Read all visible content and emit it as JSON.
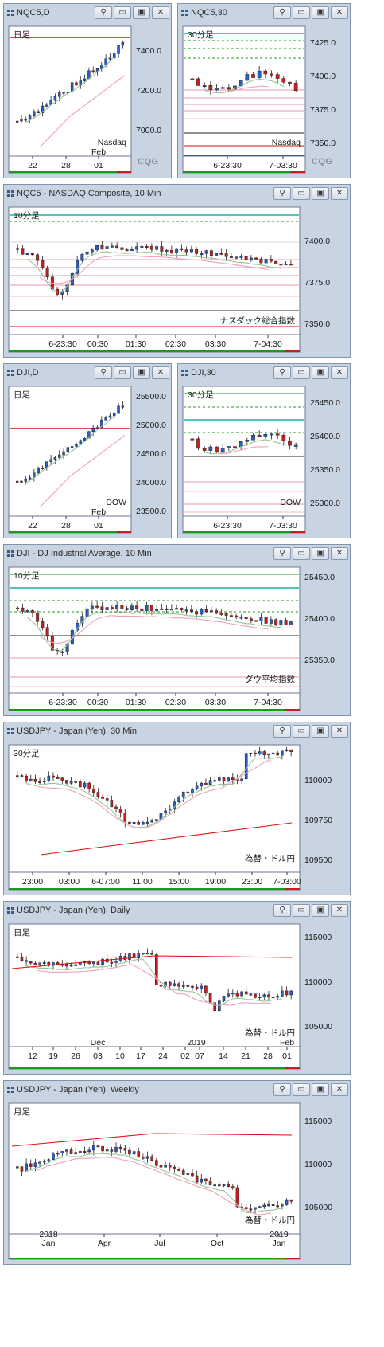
{
  "windows": [
    {
      "id": "w1",
      "title": "NQC5,D",
      "corner": "日足",
      "corner_color": "#2456c0",
      "label": "Nasdaq",
      "label_color": "#2456c0",
      "yticks": [
        "7400.0",
        "7200.0",
        "7000.0"
      ],
      "xticks": [
        "22",
        "28",
        "01"
      ],
      "xsub": [
        "Feb"
      ],
      "brand": "CQG"
    },
    {
      "id": "w2",
      "title": "NQC5,30",
      "corner": "30分足",
      "corner_color": "#2456c0",
      "label": "Nasdaq",
      "label_color": "#2456c0",
      "yticks": [
        "7425.0",
        "7400.0",
        "7375.0",
        "7350.0"
      ],
      "xticks": [
        "6-23:30",
        "7-03:30"
      ],
      "xsub": [],
      "brand": "CQG"
    },
    {
      "id": "w3",
      "title": "NQC5 - NASDAQ Composite, 10 Min",
      "corner": "10分足",
      "corner_color": "#2456c0",
      "label": "ナスダック総合指数",
      "label_color": "#2456c0",
      "yticks": [
        "7400.0",
        "7375.0",
        "7350.0"
      ],
      "xticks": [
        "6-23:30",
        "00:30",
        "01:30",
        "02:30",
        "03:30",
        "7-04:30"
      ],
      "xsub": [],
      "brand": ""
    },
    {
      "id": "w4",
      "title": "DJI,D",
      "corner": "日足",
      "corner_color": "#d01818",
      "label": "DOW",
      "label_color": "#d01818",
      "yticks": [
        "25500.0",
        "25000.0",
        "24500.0",
        "24000.0",
        "23500.0"
      ],
      "xticks": [
        "22",
        "28",
        "01"
      ],
      "xsub": [
        "Feb"
      ],
      "brand": ""
    },
    {
      "id": "w5",
      "title": "DJI,30",
      "corner": "30分足",
      "corner_color": "#d01818",
      "label": "DOW",
      "label_color": "#d01818",
      "yticks": [
        "25450.0",
        "25400.0",
        "25350.0",
        "25300.0"
      ],
      "xticks": [
        "6-23:30",
        "7-03:30"
      ],
      "xsub": [],
      "brand": ""
    },
    {
      "id": "w6",
      "title": "DJI - DJ Industrial Average, 10 Min",
      "corner": "10分足",
      "corner_color": "#d01818",
      "label": "ダウ平均指数",
      "label_color": "#d01818",
      "yticks": [
        "25450.0",
        "25400.0",
        "25350.0"
      ],
      "xticks": [
        "6-23:30",
        "00:30",
        "01:30",
        "02:30",
        "03:30",
        "7-04:30"
      ],
      "xsub": [],
      "brand": ""
    },
    {
      "id": "w7",
      "title": "USDJPY - Japan (Yen), 30 Min",
      "corner": "30分足",
      "corner_color": "#1a8a1a",
      "label": "為替・ドル円",
      "label_color": "#1a8a1a",
      "yticks": [
        "110000",
        "109750",
        "109500"
      ],
      "xticks": [
        "23:00",
        "03:00",
        "6-07:00",
        "11:00",
        "15:00",
        "19:00",
        "23:00",
        "7-03:00"
      ],
      "xsub": [],
      "brand": ""
    },
    {
      "id": "w8",
      "title": "USDJPY - Japan (Yen), Daily",
      "corner": "日足",
      "corner_color": "#1a8a1a",
      "label": "為替・ドル円",
      "label_color": "#1a8a1a",
      "yticks": [
        "115000",
        "110000",
        "105000"
      ],
      "xticks": [
        "12",
        "19",
        "26",
        "03",
        "10",
        "17",
        "24",
        "02",
        "07",
        "14",
        "21",
        "28",
        "01"
      ],
      "xsub": [
        "Dec",
        "2019",
        "Feb"
      ],
      "brand": ""
    },
    {
      "id": "w9",
      "title": "USDJPY - Japan (Yen), Weekly",
      "corner": "月足",
      "corner_color": "#1a8a1a",
      "label": "為替・ドル円",
      "label_color": "#1a8a1a",
      "yticks": [
        "115000",
        "110000",
        "105000"
      ],
      "xticks": [
        "Jan",
        "Apr",
        "Jul",
        "Oct",
        "Jan"
      ],
      "xsub": [
        "2018",
        "2019"
      ],
      "brand": ""
    }
  ],
  "buttons": {
    "pin": "⚲",
    "minimize": "▭",
    "restore": "▣",
    "close": "✕"
  }
}
